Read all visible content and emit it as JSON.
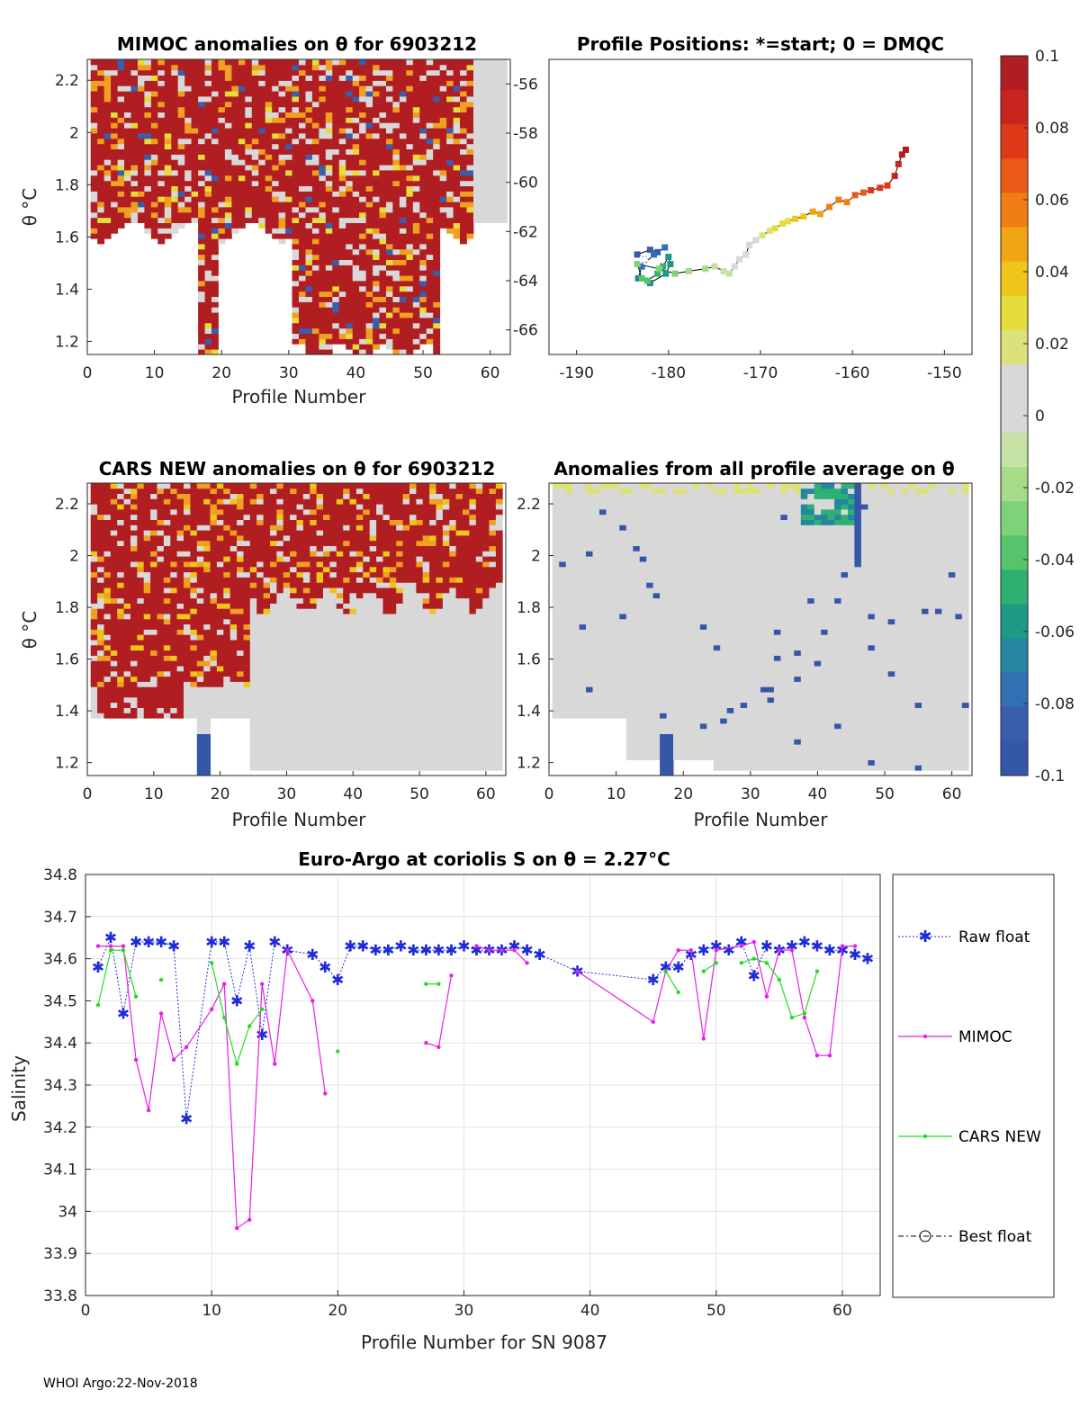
{
  "footer": "WHOI Argo:22-Nov-2018",
  "colors": {
    "red": "#b11e22",
    "gray": "#d8d8d8",
    "blue": "#3557a8",
    "axis": "#262626",
    "raw": "#1f2bd6",
    "mimoc": "#e81ee8",
    "cars": "#22dd22",
    "best": "#000000"
  },
  "chart_data": [
    {
      "id": "mimoc",
      "type": "heatmap",
      "title": "MIMOC anomalies on θ  for 6903212",
      "xlabel": "Profile Number",
      "ylabel": "θ °C",
      "xlim": [
        0,
        63
      ],
      "ylim": [
        1.15,
        2.28
      ],
      "xticks": [
        "0",
        "10",
        "20",
        "30",
        "40",
        "50",
        "60"
      ],
      "yticks": [
        "1.2",
        "1.4",
        "1.6",
        "1.8",
        "2",
        "2.2"
      ],
      "right_ticks": [
        "-56",
        "-58",
        "-60",
        "-62",
        "-64",
        "-66"
      ]
    },
    {
      "id": "positions",
      "type": "scatter",
      "title": "Profile Positions: *=start; 0 = DMQC",
      "xlim": [
        -193,
        -147
      ],
      "ylim": [
        -67,
        -54.6
      ],
      "xticks": [
        "-190",
        "-180",
        "-170",
        "-160",
        "-150"
      ],
      "lon": [
        -182.6,
        -183.4,
        -182.0,
        -181.2,
        -180.4,
        -181.6,
        -182.9,
        -183.3,
        -182.0,
        -180.3,
        -179.8,
        -180.0,
        -180.6,
        -181.2,
        -182.3,
        -182.9,
        -183.4,
        -181.0,
        -179.3,
        -177.8,
        -176.0,
        -175.0,
        -174.0,
        -173.4,
        -172.8,
        -172.3,
        -171.6,
        -171.2,
        -170.5,
        -169.8,
        -169.0,
        -168.4,
        -167.6,
        -167.0,
        -166.2,
        -165.3,
        -164.3,
        -163.5,
        -162.5,
        -161.5,
        -160.6,
        -159.7,
        -158.8,
        -158.0,
        -157.0,
        -156.2,
        -155.4,
        -155.0,
        -154.6,
        -154.2
      ],
      "lat": [
        -63.0,
        -62.8,
        -62.6,
        -62.7,
        -62.5,
        -62.8,
        -63.3,
        -63.8,
        -64.0,
        -63.6,
        -63.2,
        -62.9,
        -63.3,
        -63.6,
        -63.9,
        -63.8,
        -63.2,
        -63.4,
        -63.6,
        -63.5,
        -63.4,
        -63.3,
        -63.5,
        -63.6,
        -63.3,
        -63.0,
        -62.8,
        -62.4,
        -62.2,
        -62.0,
        -61.8,
        -61.7,
        -61.5,
        -61.4,
        -61.3,
        -61.2,
        -61.0,
        -61.1,
        -60.8,
        -60.5,
        -60.6,
        -60.3,
        -60.2,
        -60.1,
        -60.0,
        -59.9,
        -59.5,
        -59.0,
        -58.6,
        -58.4
      ]
    },
    {
      "id": "colorbar",
      "type": "colorbar",
      "range": [
        -0.1,
        0.1
      ],
      "ticks": [
        "0.1",
        "0.08",
        "0.06",
        "0.04",
        "0.02",
        "0",
        "-0.02",
        "-0.04",
        "-0.06",
        "-0.08",
        "-0.1"
      ],
      "colors": [
        "#b11e22",
        "#c8251e",
        "#de3a1a",
        "#ea5a17",
        "#f17e15",
        "#f1a414",
        "#edc51b",
        "#e6dc3a",
        "#dde17a",
        "#d8d8d8",
        "#d8d8d8",
        "#c6e2a4",
        "#a6db88",
        "#7fd27a",
        "#55c46c",
        "#2fb073",
        "#1d9a86",
        "#2586a0",
        "#3170b3",
        "#3a5dac",
        "#3557a8"
      ]
    },
    {
      "id": "cars",
      "type": "heatmap",
      "title": "CARS NEW anomalies on θ for 6903212",
      "xlabel": "Profile Number",
      "ylabel": "θ °C",
      "xlim": [
        0,
        63
      ],
      "ylim": [
        1.15,
        2.28
      ],
      "xticks": [
        "0",
        "10",
        "20",
        "30",
        "40",
        "50",
        "60"
      ],
      "yticks": [
        "1.2",
        "1.4",
        "1.6",
        "1.8",
        "2",
        "2.2"
      ]
    },
    {
      "id": "allavg",
      "type": "heatmap",
      "title": "Anomalies from all profile average on θ",
      "xlabel": "Profile Number",
      "xlim": [
        0,
        63
      ],
      "ylim": [
        1.15,
        2.28
      ],
      "xticks": [
        "0",
        "10",
        "20",
        "30",
        "40",
        "50",
        "60"
      ],
      "yticks": [
        "1.2",
        "1.4",
        "1.6",
        "1.8",
        "2",
        "2.2"
      ]
    },
    {
      "id": "salinity",
      "type": "line",
      "title": "Euro-Argo at coriolis S on θ = 2.27°C",
      "xlabel": "Profile Number for SN 9087",
      "ylabel": "Salinity",
      "xlim": [
        0,
        63
      ],
      "ylim": [
        33.8,
        34.8
      ],
      "xticks": [
        0,
        10,
        20,
        30,
        40,
        50,
        60
      ],
      "yticks": [
        "33.8",
        "33.9",
        "34",
        "34.1",
        "34.2",
        "34.3",
        "34.4",
        "34.5",
        "34.6",
        "34.7",
        "34.8"
      ],
      "legend": [
        "Raw float",
        "MIMOC",
        "CARS NEW",
        "Best float"
      ],
      "series": [
        {
          "name": "Raw float",
          "x": [
            1,
            2,
            3,
            4,
            5,
            6,
            7,
            8,
            10,
            11,
            12,
            13,
            14,
            15,
            16,
            18,
            19,
            20,
            21,
            22,
            23,
            24,
            25,
            26,
            27,
            28,
            29,
            30,
            31,
            32,
            33,
            34,
            35,
            36,
            39,
            45,
            46,
            47,
            48,
            49,
            50,
            51,
            52,
            53,
            54,
            55,
            56,
            57,
            58,
            59,
            60,
            61,
            62
          ],
          "y": [
            34.58,
            34.65,
            34.47,
            34.64,
            34.64,
            34.64,
            34.63,
            34.22,
            34.64,
            34.64,
            34.5,
            34.63,
            34.42,
            34.64,
            34.62,
            34.61,
            34.58,
            34.55,
            34.63,
            34.63,
            34.62,
            34.62,
            34.63,
            34.62,
            34.62,
            34.62,
            34.62,
            34.63,
            34.62,
            34.62,
            34.62,
            34.63,
            34.62,
            34.61,
            34.57,
            34.55,
            34.58,
            34.58,
            34.61,
            34.62,
            34.63,
            34.62,
            34.64,
            34.56,
            34.63,
            34.62,
            34.63,
            34.64,
            34.63,
            34.62,
            34.62,
            34.61,
            34.6
          ]
        },
        {
          "name": "MIMOC",
          "segments": [
            {
              "x": [
                1,
                2,
                3,
                4,
                5,
                6,
                7,
                8,
                10,
                11,
                12,
                13,
                14,
                15,
                16,
                18,
                19
              ],
              "y": [
                34.63,
                34.63,
                34.63,
                34.36,
                34.24,
                34.47,
                34.36,
                34.39,
                34.48,
                34.54,
                33.96,
                33.98,
                34.54,
                34.35,
                34.62,
                34.5,
                34.28
              ]
            },
            {
              "x": [
                27,
                28,
                29
              ],
              "y": [
                34.4,
                34.39,
                34.56
              ]
            },
            {
              "x": [
                31,
                32,
                33,
                34,
                35
              ],
              "y": [
                34.63,
                34.62,
                34.62,
                34.62,
                34.59
              ]
            },
            {
              "x": [
                39,
                45,
                46,
                47,
                48,
                49,
                50,
                52,
                53,
                54,
                55,
                56,
                57,
                58,
                59,
                60,
                61
              ],
              "y": [
                34.57,
                34.45,
                34.57,
                34.62,
                34.62,
                34.41,
                34.62,
                34.63,
                34.64,
                34.51,
                34.62,
                34.62,
                34.46,
                34.37,
                34.37,
                34.63,
                34.63
              ]
            }
          ]
        },
        {
          "name": "CARS NEW",
          "segments": [
            {
              "x": [
                1,
                2,
                3,
                4
              ],
              "y": [
                34.49,
                34.62,
                34.62,
                34.51
              ]
            },
            {
              "x": [
                6
              ],
              "y": [
                34.55
              ]
            },
            {
              "x": [
                10,
                11,
                12,
                13,
                14
              ],
              "y": [
                34.59,
                34.46,
                34.35,
                34.44,
                34.48
              ]
            },
            {
              "x": [
                20
              ],
              "y": [
                34.38
              ]
            },
            {
              "x": [
                27,
                28
              ],
              "y": [
                34.54,
                34.54
              ]
            },
            {
              "x": [
                46,
                47
              ],
              "y": [
                34.57,
                34.52
              ]
            },
            {
              "x": [
                49,
                50
              ],
              "y": [
                34.57,
                34.59
              ]
            },
            {
              "x": [
                52,
                53,
                54,
                55,
                56,
                57,
                58
              ],
              "y": [
                34.59,
                34.6,
                34.59,
                34.55,
                34.46,
                34.47,
                34.57
              ]
            }
          ]
        }
      ]
    }
  ]
}
